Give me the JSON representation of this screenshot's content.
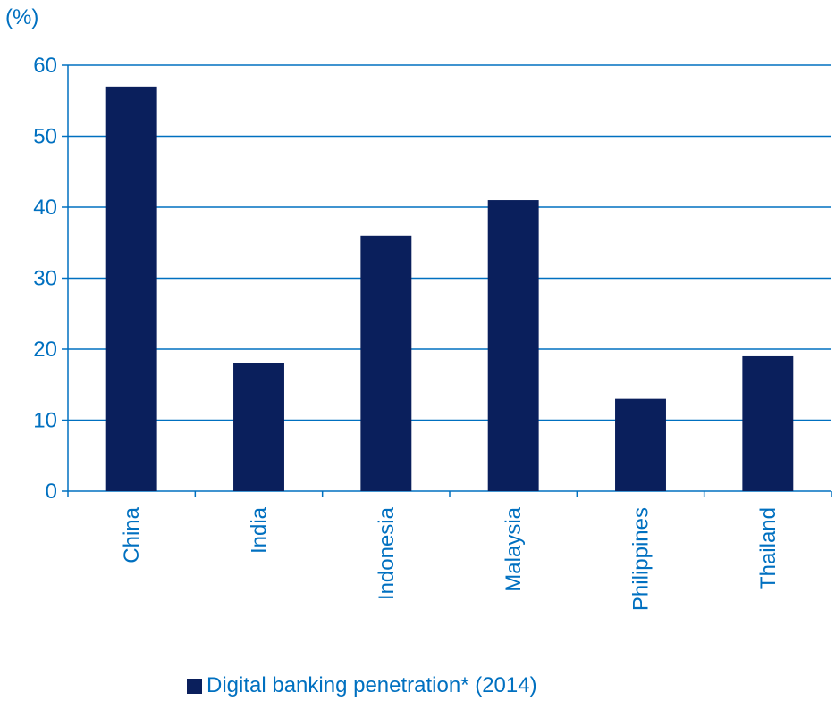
{
  "unit_label": "(%)",
  "colors": {
    "bar": "#0a1f5c",
    "axis": "#0070c0",
    "text": "#0070c0"
  },
  "chart_data": {
    "type": "bar",
    "categories": [
      "China",
      "India",
      "Indonesia",
      "Malaysia",
      "Philippines",
      "Thailand"
    ],
    "series": [
      {
        "name": "Digital banking penetration* (2014)",
        "values": [
          57,
          18,
          36,
          41,
          13,
          19
        ]
      }
    ],
    "ylim": [
      0,
      60
    ],
    "yticks": [
      0,
      10,
      20,
      30,
      40,
      50,
      60
    ],
    "grid": true,
    "legend": "bottom"
  },
  "legend": {
    "label": "Digital banking penetration* (2014)"
  }
}
